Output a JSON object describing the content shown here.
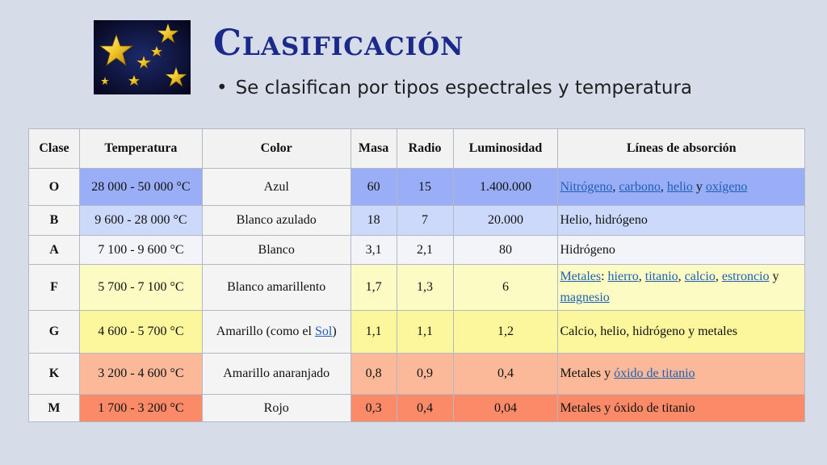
{
  "slide": {
    "title": "Clasificación",
    "bullet": "Se clasifican por tipos espectrales y temperatura"
  },
  "image": {
    "icon": "gold-stars-image"
  },
  "table": {
    "headers": [
      "Clase",
      "Temperatura",
      "Color",
      "Masa",
      "Radio",
      "Luminosidad",
      "Líneas de absorción"
    ],
    "rows": [
      {
        "clase": "O",
        "temperatura": "28 000 - 50 000 °C",
        "color_prefix": "Azul",
        "color_link": "",
        "color_suffix": "",
        "masa": "60",
        "radio": "15",
        "luminosidad": "1.400.000",
        "lineas": [
          {
            "text": "Nitrógeno",
            "link": true
          },
          {
            "text": ", ",
            "link": false
          },
          {
            "text": "carbono",
            "link": true
          },
          {
            "text": ", ",
            "link": false
          },
          {
            "text": "helio",
            "link": true
          },
          {
            "text": " y ",
            "link": false
          },
          {
            "text": "oxígeno",
            "link": true
          }
        ],
        "bg": "#9aaef8",
        "height": 46
      },
      {
        "clase": "B",
        "temperatura": "9 600 - 28 000 °C",
        "color_prefix": "Blanco azulado",
        "color_link": "",
        "color_suffix": "",
        "masa": "18",
        "radio": "7",
        "luminosidad": "20.000",
        "lineas": [
          {
            "text": "Helio, hidrógeno",
            "link": false
          }
        ],
        "bg": "#cdd9fb",
        "height": 37
      },
      {
        "clase": "A",
        "temperatura": "7 100 - 9 600 °C",
        "color_prefix": "Blanco",
        "color_link": "",
        "color_suffix": "",
        "masa": "3,1",
        "radio": "2,1",
        "luminosidad": "80",
        "lineas": [
          {
            "text": "Hidrógeno",
            "link": false
          }
        ],
        "bg": "#f3f4fa",
        "height": 36
      },
      {
        "clase": "F",
        "temperatura": "5 700 - 7 100 °C",
        "color_prefix": "Blanco amarillento",
        "color_link": "",
        "color_suffix": "",
        "masa": "1,7",
        "radio": "1,3",
        "luminosidad": "6",
        "lineas": [
          {
            "text": "Metales",
            "link": true
          },
          {
            "text": ": ",
            "link": false
          },
          {
            "text": "hierro",
            "link": true
          },
          {
            "text": ", ",
            "link": false
          },
          {
            "text": "titanio",
            "link": true
          },
          {
            "text": ", ",
            "link": false
          },
          {
            "text": "calcio",
            "link": true
          },
          {
            "text": ", ",
            "link": false
          },
          {
            "text": "estroncio",
            "link": true
          },
          {
            "text": " y ",
            "link": false
          },
          {
            "text": "magnesio",
            "link": true
          }
        ],
        "bg": "#fdfbc4",
        "height": 57
      },
      {
        "clase": "G",
        "temperatura": "4 600 - 5 700 °C",
        "color_prefix": "Amarillo (como el ",
        "color_link": "Sol",
        "color_suffix": ")",
        "masa": "1,1",
        "radio": "1,1",
        "luminosidad": "1,2",
        "lineas": [
          {
            "text": "Calcio, helio, hidrógeno y metales",
            "link": false
          }
        ],
        "bg": "#fcf79c",
        "height": 53
      },
      {
        "clase": "K",
        "temperatura": "3 200 - 4 600 °C",
        "color_prefix": "Amarillo anaranjado",
        "color_link": "",
        "color_suffix": "",
        "masa": "0,8",
        "radio": "0,9",
        "luminosidad": "0,4",
        "lineas": [
          {
            "text": "Metales y ",
            "link": false
          },
          {
            "text": "óxido de titanio",
            "link": true
          }
        ],
        "bg": "#fbb99a",
        "height": 51
      },
      {
        "clase": "M",
        "temperatura": "1 700 - 3 200 °C",
        "color_prefix": "Rojo",
        "color_link": "",
        "color_suffix": "",
        "masa": "0,3",
        "radio": "0,4",
        "luminosidad": "0,04",
        "lineas": [
          {
            "text": "Metales y óxido de titanio",
            "link": false
          }
        ],
        "bg": "#fb8a68",
        "height": 34
      }
    ]
  }
}
